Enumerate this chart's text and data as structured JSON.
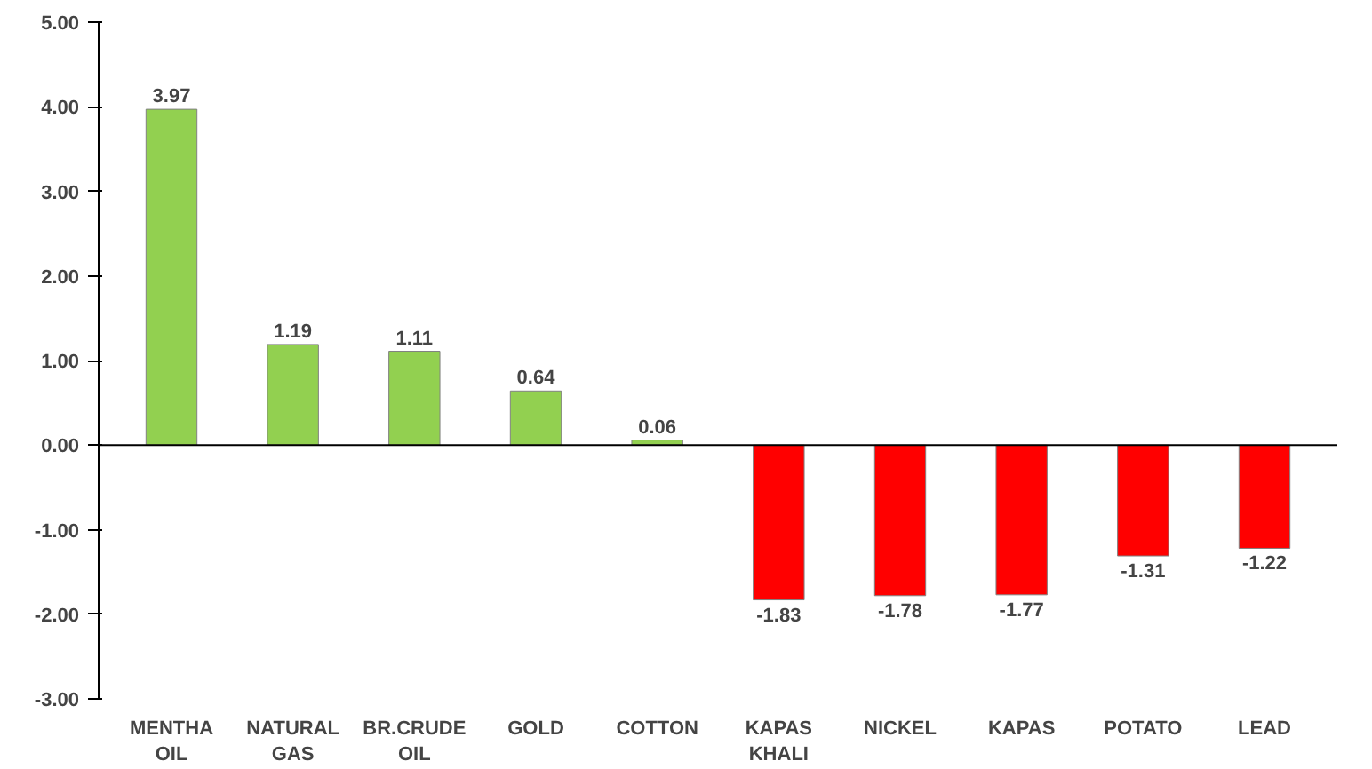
{
  "chart_data": {
    "type": "bar",
    "categories": [
      "MENTHA\nOIL",
      "NATURAL\nGAS",
      "BR.CRUDE\nOIL",
      "GOLD",
      "COTTON",
      "KAPAS\nKHALI",
      "NICKEL",
      "KAPAS",
      "POTATO",
      "LEAD"
    ],
    "values": [
      3.97,
      1.19,
      1.11,
      0.64,
      0.06,
      -1.83,
      -1.78,
      -1.77,
      -1.31,
      -1.22
    ],
    "colors": [
      "#92d050",
      "#92d050",
      "#92d050",
      "#92d050",
      "#92d050",
      "#ff0000",
      "#ff0000",
      "#ff0000",
      "#ff0000",
      "#ff0000"
    ],
    "ylim": [
      -3,
      5
    ],
    "yticks": [
      {
        "value": -3,
        "label": "-3.00"
      },
      {
        "value": -2,
        "label": "-2.00"
      },
      {
        "value": -1,
        "label": "-1.00"
      },
      {
        "value": 0,
        "label": "0.00"
      },
      {
        "value": 1,
        "label": "1.00"
      },
      {
        "value": 2,
        "label": "2.00"
      },
      {
        "value": 3,
        "label": "3.00"
      },
      {
        "value": 4,
        "label": "4.00"
      },
      {
        "value": 5,
        "label": "5.00"
      }
    ],
    "data_labels": true
  }
}
